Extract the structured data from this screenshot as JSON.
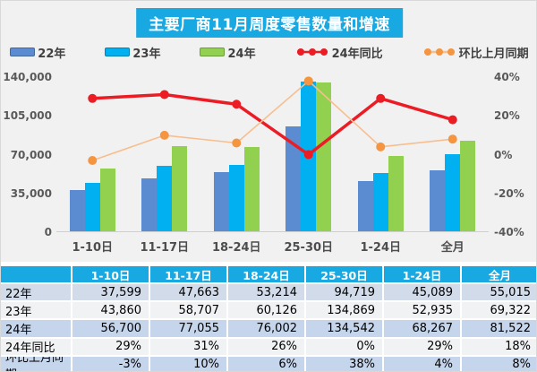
{
  "title": "主要厂商11月周度零售数量和增速",
  "colors": {
    "accent_cyan": "#18a8e2",
    "chart_bg": "#f1f1f2",
    "bar_22": "#5b8bd0",
    "bar_23": "#00b0f0",
    "bar_24": "#92d050",
    "line_yoy": "#ec1c24",
    "line_mom_marker": "#f5953f",
    "line_mom": "#f8be8e",
    "axis_text": "#595959",
    "row_bg_a": "#d2dbea",
    "row_bg_b": "#f1f2f4",
    "row_bg_c": "#c5d5ec"
  },
  "legend": {
    "items": [
      {
        "label": "22年",
        "icon": "bar-swatch-blue",
        "kind": "bar",
        "color": "#5b8bd0"
      },
      {
        "label": "23年",
        "icon": "bar-swatch-cyan",
        "kind": "bar",
        "color": "#00b0f0"
      },
      {
        "label": "24年",
        "icon": "bar-swatch-green",
        "kind": "bar",
        "color": "#92d050"
      },
      {
        "label": "24年同比",
        "icon": "line-dots-red",
        "kind": "line",
        "color": "#ec1c24",
        "marker": "#ec1c24"
      },
      {
        "label": "环比上月同期",
        "icon": "line-dots-orange",
        "kind": "line",
        "color": "#f8be8e",
        "marker": "#f5953f"
      }
    ]
  },
  "chart_data": {
    "type": "bar",
    "subtype": "bar-line-combo",
    "title": "主要厂商11月周度零售数量和增速",
    "categories": [
      "1-10日",
      "11-17日",
      "18-24日",
      "25-30日",
      "1-24日",
      "全月"
    ],
    "series": [
      {
        "name": "22年",
        "type": "bar",
        "axis": "left",
        "color": "#5b8bd0",
        "values": [
          37599,
          47663,
          53214,
          94719,
          45089,
          55015
        ]
      },
      {
        "name": "23年",
        "type": "bar",
        "axis": "left",
        "color": "#00b0f0",
        "values": [
          43860,
          58707,
          60126,
          134869,
          52935,
          69322
        ]
      },
      {
        "name": "24年",
        "type": "bar",
        "axis": "left",
        "color": "#92d050",
        "values": [
          56700,
          77055,
          76002,
          134542,
          68267,
          81522
        ]
      },
      {
        "name": "24年同比",
        "type": "line",
        "axis": "right",
        "color": "#ec1c24",
        "marker_color": "#ec1c24",
        "stroke_width": 3.5,
        "values": [
          29,
          31,
          26,
          0,
          29,
          18
        ]
      },
      {
        "name": "环比上月同期",
        "type": "line",
        "axis": "right",
        "color": "#f8be8e",
        "marker_color": "#f5953f",
        "stroke_width": 1.6,
        "values": [
          -3,
          10,
          6,
          38,
          4,
          8
        ]
      }
    ],
    "left_axis": {
      "min": 0,
      "max": 140000,
      "ticks": [
        "140,000",
        "105,000",
        "70,000",
        "35,000",
        "0"
      ]
    },
    "right_axis": {
      "min": -40,
      "max": 40,
      "ticks": [
        "40%",
        "20%",
        "0%",
        "-20%",
        "-40%"
      ]
    },
    "grid": false,
    "legend_position": "top"
  },
  "table": {
    "header": [
      "",
      "1-10日",
      "11-17日",
      "18-24日",
      "25-30日",
      "1-24日",
      "全月"
    ],
    "rows": [
      {
        "label": "22年",
        "bg": "#d2dbea",
        "values": [
          "37,599",
          "47,663",
          "53,214",
          "94,719",
          "45,089",
          "55,015"
        ]
      },
      {
        "label": "23年",
        "bg": "#f1f2f4",
        "values": [
          "43,860",
          "58,707",
          "60,126",
          "134,869",
          "52,935",
          "69,322"
        ]
      },
      {
        "label": "24年",
        "bg": "#c5d5ec",
        "values": [
          "56,700",
          "77,055",
          "76,002",
          "134,542",
          "68,267",
          "81,522"
        ]
      },
      {
        "label": "24年同比",
        "bg": "#f1f2f4",
        "values": [
          "29%",
          "31%",
          "26%",
          "0%",
          "29%",
          "18%"
        ]
      },
      {
        "label": "环比上月同期",
        "bg": "#c5d5ec",
        "values": [
          "-3%",
          "10%",
          "6%",
          "38%",
          "4%",
          "8%"
        ]
      }
    ]
  }
}
